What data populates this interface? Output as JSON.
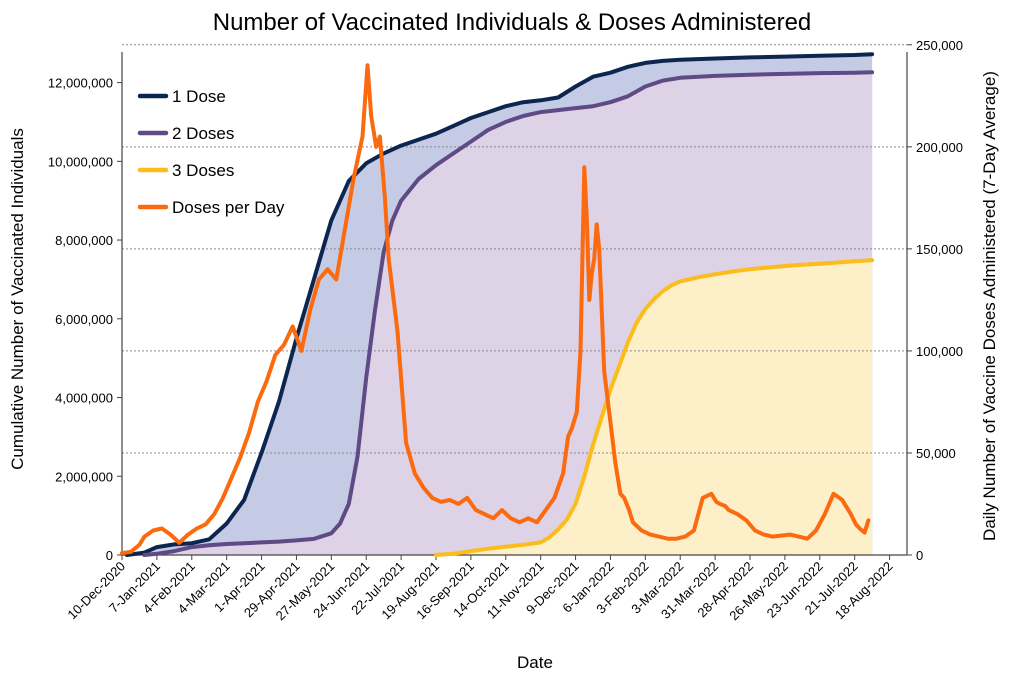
{
  "chart_data": {
    "type": "line",
    "title": "Number of Vaccinated Individuals & Doses Administered",
    "xlabel": "Date",
    "ylabel": "Cumulative Number of Vaccinated Individuals",
    "y2label": "Daily Number of Vaccine Doses Administered (7-Day Average)",
    "ylim": [
      0,
      12700000
    ],
    "y2lim": [
      0,
      245000
    ],
    "yticks": [
      0,
      2000000,
      4000000,
      6000000,
      8000000,
      10000000,
      12000000
    ],
    "yticklabels": [
      "0",
      "2,000,000",
      "4,000,000",
      "6,000,000",
      "8,000,000",
      "10,000,000",
      "12,000,000"
    ],
    "y2ticks": [
      0,
      50000,
      100000,
      150000,
      200000,
      250000
    ],
    "y2ticklabels": [
      "0",
      "50,000",
      "100,000",
      "150,000",
      "200,000",
      "250,000"
    ],
    "xlim": [
      "2020-12-10",
      "2022-09-01"
    ],
    "xticks": [
      "2020-12-10",
      "2021-01-07",
      "2021-02-04",
      "2021-03-04",
      "2021-04-01",
      "2021-04-29",
      "2021-05-27",
      "2021-06-24",
      "2021-07-22",
      "2021-08-19",
      "2021-09-16",
      "2021-10-14",
      "2021-11-11",
      "2021-12-09",
      "2022-01-06",
      "2022-02-03",
      "2022-03-03",
      "2022-03-31",
      "2022-04-28",
      "2022-05-26",
      "2022-06-23",
      "2022-07-21",
      "2022-08-18"
    ],
    "xticklabels": [
      "10-Dec-2020",
      "7-Jan-2021",
      "4-Feb-2021",
      "4-Mar-2021",
      "1-Apr-2021",
      "29-Apr-2021",
      "27-May-2021",
      "24-Jun-2021",
      "22-Jul-2021",
      "19-Aug-2021",
      "16-Sep-2021",
      "14-Oct-2021",
      "11-Nov-2021",
      "9-Dec-2021",
      "6-Jan-2022",
      "3-Feb-2022",
      "3-Mar-2022",
      "31-Mar-2022",
      "28-Apr-2022",
      "26-May-2022",
      "23-Jun-2022",
      "21-Jul-2022",
      "18-Aug-2022"
    ],
    "legend_position": "top-left",
    "grid": "horizontal dashed",
    "series": [
      {
        "name": "1 Dose",
        "axis": "left",
        "color": "#0d2650",
        "fill": "#c5cbe5",
        "x": [
          "2020-12-14",
          "2020-12-28",
          "2021-01-07",
          "2021-01-21",
          "2021-02-04",
          "2021-02-18",
          "2021-03-04",
          "2021-03-18",
          "2021-04-01",
          "2021-04-15",
          "2021-04-29",
          "2021-05-13",
          "2021-05-27",
          "2021-06-10",
          "2021-06-24",
          "2021-07-08",
          "2021-07-22",
          "2021-08-05",
          "2021-08-19",
          "2021-09-02",
          "2021-09-16",
          "2021-09-30",
          "2021-10-14",
          "2021-10-28",
          "2021-11-11",
          "2021-11-25",
          "2021-12-09",
          "2021-12-23",
          "2022-01-06",
          "2022-01-20",
          "2022-02-03",
          "2022-02-17",
          "2022-03-03",
          "2022-03-31",
          "2022-04-28",
          "2022-05-26",
          "2022-06-23",
          "2022-07-21",
          "2022-08-04"
        ],
        "y": [
          0,
          60000,
          200000,
          270000,
          300000,
          400000,
          800000,
          1400000,
          2600000,
          3900000,
          5500000,
          7000000,
          8500000,
          9500000,
          9950000,
          10200000,
          10400000,
          10550000,
          10700000,
          10900000,
          11100000,
          11250000,
          11400000,
          11500000,
          11550000,
          11620000,
          11900000,
          12150000,
          12250000,
          12400000,
          12500000,
          12550000,
          12580000,
          12610000,
          12640000,
          12660000,
          12680000,
          12700000,
          12720000
        ]
      },
      {
        "name": "2 Doses",
        "axis": "left",
        "color": "#5f4a85",
        "fill": "#ddd2e6",
        "x": [
          "2020-12-28",
          "2021-01-07",
          "2021-01-21",
          "2021-02-04",
          "2021-02-18",
          "2021-03-04",
          "2021-03-18",
          "2021-04-01",
          "2021-04-15",
          "2021-04-29",
          "2021-05-13",
          "2021-05-27",
          "2021-06-03",
          "2021-06-10",
          "2021-06-17",
          "2021-06-24",
          "2021-07-01",
          "2021-07-08",
          "2021-07-15",
          "2021-07-22",
          "2021-08-05",
          "2021-08-19",
          "2021-09-02",
          "2021-09-16",
          "2021-09-30",
          "2021-10-14",
          "2021-10-28",
          "2021-11-11",
          "2021-11-25",
          "2021-12-09",
          "2021-12-23",
          "2022-01-06",
          "2022-01-20",
          "2022-02-03",
          "2022-02-17",
          "2022-03-03",
          "2022-03-31",
          "2022-04-28",
          "2022-05-26",
          "2022-06-23",
          "2022-07-21",
          "2022-08-04"
        ],
        "y": [
          0,
          30000,
          100000,
          200000,
          250000,
          280000,
          300000,
          320000,
          340000,
          370000,
          410000,
          550000,
          800000,
          1300000,
          2500000,
          4500000,
          6200000,
          7700000,
          8500000,
          9000000,
          9550000,
          9900000,
          10200000,
          10500000,
          10800000,
          11000000,
          11150000,
          11250000,
          11300000,
          11350000,
          11400000,
          11500000,
          11650000,
          11900000,
          12050000,
          12120000,
          12170000,
          12200000,
          12220000,
          12240000,
          12250000,
          12260000
        ]
      },
      {
        "name": "3 Doses",
        "axis": "left",
        "color": "#fbbc1c",
        "fill": "#fdf0c9",
        "x": [
          "2021-08-19",
          "2021-09-02",
          "2021-09-16",
          "2021-09-30",
          "2021-10-14",
          "2021-10-28",
          "2021-11-11",
          "2021-11-18",
          "2021-11-25",
          "2021-12-02",
          "2021-12-09",
          "2021-12-16",
          "2021-12-23",
          "2021-12-30",
          "2022-01-06",
          "2022-01-13",
          "2022-01-20",
          "2022-01-27",
          "2022-02-03",
          "2022-02-10",
          "2022-02-17",
          "2022-02-24",
          "2022-03-03",
          "2022-03-17",
          "2022-03-31",
          "2022-04-14",
          "2022-04-28",
          "2022-05-12",
          "2022-05-26",
          "2022-06-09",
          "2022-06-23",
          "2022-07-07",
          "2022-07-21",
          "2022-08-04"
        ],
        "y": [
          0,
          30000,
          100000,
          160000,
          210000,
          260000,
          320000,
          450000,
          650000,
          900000,
          1300000,
          2000000,
          2800000,
          3500000,
          4200000,
          4800000,
          5400000,
          5900000,
          6250000,
          6500000,
          6700000,
          6850000,
          6950000,
          7050000,
          7130000,
          7200000,
          7260000,
          7300000,
          7340000,
          7370000,
          7400000,
          7430000,
          7460000,
          7490000
        ]
      },
      {
        "name": "Doses per Day",
        "axis": "right",
        "color": "#fc6a0f",
        "x": [
          "2020-12-10",
          "2020-12-17",
          "2020-12-24",
          "2020-12-28",
          "2021-01-04",
          "2021-01-11",
          "2021-01-18",
          "2021-01-25",
          "2021-02-01",
          "2021-02-08",
          "2021-02-15",
          "2021-02-22",
          "2021-03-01",
          "2021-03-08",
          "2021-03-15",
          "2021-03-22",
          "2021-03-29",
          "2021-04-05",
          "2021-04-12",
          "2021-04-19",
          "2021-04-26",
          "2021-05-03",
          "2021-05-10",
          "2021-05-17",
          "2021-05-24",
          "2021-05-31",
          "2021-06-07",
          "2021-06-14",
          "2021-06-21",
          "2021-06-25",
          "2021-06-28",
          "2021-07-02",
          "2021-07-05",
          "2021-07-09",
          "2021-07-12",
          "2021-07-19",
          "2021-07-26",
          "2021-08-02",
          "2021-08-09",
          "2021-08-16",
          "2021-08-23",
          "2021-08-30",
          "2021-09-06",
          "2021-09-13",
          "2021-09-20",
          "2021-09-27",
          "2021-10-04",
          "2021-10-11",
          "2021-10-18",
          "2021-10-25",
          "2021-11-01",
          "2021-11-08",
          "2021-11-15",
          "2021-11-22",
          "2021-11-29",
          "2021-12-03",
          "2021-12-06",
          "2021-12-10",
          "2021-12-13",
          "2021-12-16",
          "2021-12-18",
          "2021-12-20",
          "2021-12-22",
          "2021-12-24",
          "2021-12-26",
          "2021-12-28",
          "2021-12-30",
          "2022-01-01",
          "2022-01-03",
          "2022-01-07",
          "2022-01-10",
          "2022-01-14",
          "2022-01-17",
          "2022-01-21",
          "2022-01-24",
          "2022-01-31",
          "2022-02-07",
          "2022-02-14",
          "2022-02-21",
          "2022-02-28",
          "2022-03-07",
          "2022-03-14",
          "2022-03-21",
          "2022-03-28",
          "2022-04-01",
          "2022-04-04",
          "2022-04-08",
          "2022-04-11",
          "2022-04-18",
          "2022-04-25",
          "2022-05-02",
          "2022-05-09",
          "2022-05-16",
          "2022-05-23",
          "2022-05-30",
          "2022-06-06",
          "2022-06-13",
          "2022-06-20",
          "2022-06-27",
          "2022-07-04",
          "2022-07-11",
          "2022-07-18",
          "2022-07-22",
          "2022-07-25",
          "2022-07-29",
          "2022-08-01"
        ],
        "y": [
          1000,
          1500,
          5000,
          9000,
          12000,
          13000,
          10000,
          6000,
          10000,
          13000,
          15000,
          20000,
          28000,
          38000,
          48000,
          60000,
          75000,
          85000,
          98000,
          103000,
          112000,
          100000,
          120000,
          135000,
          140000,
          135000,
          160000,
          185000,
          205000,
          240000,
          215000,
          200000,
          205000,
          175000,
          145000,
          110000,
          55000,
          40000,
          33000,
          28000,
          26000,
          27000,
          25000,
          28000,
          22000,
          20000,
          18000,
          22000,
          18000,
          16000,
          18000,
          16000,
          22000,
          28000,
          40000,
          58000,
          62000,
          70000,
          100000,
          190000,
          165000,
          125000,
          138000,
          145000,
          162000,
          150000,
          120000,
          90000,
          80000,
          60000,
          45000,
          30000,
          28000,
          22000,
          16000,
          12000,
          10000,
          9000,
          8000,
          8000,
          9000,
          12000,
          28000,
          30000,
          26000,
          25000,
          24000,
          22000,
          20000,
          17000,
          12000,
          10000,
          9000,
          9500,
          10000,
          9000,
          8000,
          12000,
          20000,
          30000,
          27000,
          20000,
          15000,
          13000,
          11000,
          17000
        ]
      }
    ]
  }
}
